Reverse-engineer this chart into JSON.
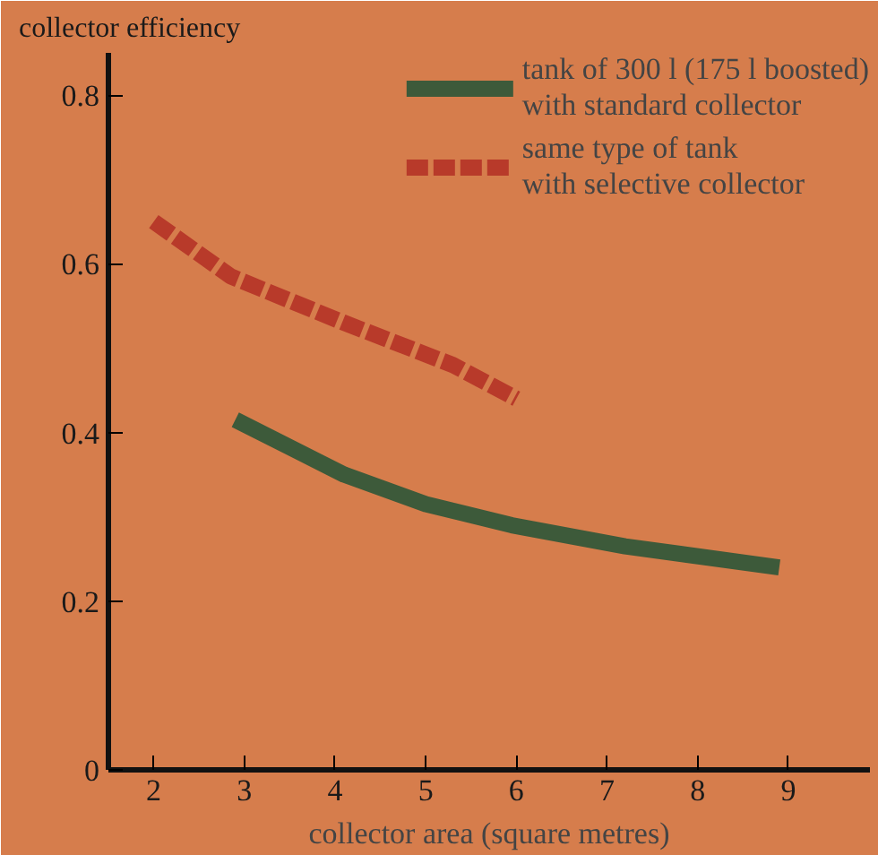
{
  "chart_data": {
    "type": "line",
    "title": "collector efficiency",
    "xlabel": "collector area (square metres)",
    "xlim": [
      1.5,
      9.9
    ],
    "xticks": [
      2,
      3,
      4,
      5,
      6,
      7,
      8,
      9
    ],
    "ylim": [
      0,
      0.85
    ],
    "yticks": [
      0,
      0.2,
      0.4,
      0.6,
      0.8
    ],
    "grid": false,
    "legend": "top right",
    "series": [
      {
        "name": "tank of 300 l (175 l boosted)\nwith standard collector",
        "color": "#3d5a3a",
        "line_style": "solid",
        "x": [
          2.9,
          4.1,
          5.0,
          5.95,
          7.2,
          8.9
        ],
        "values": [
          0.415,
          0.35,
          0.315,
          0.29,
          0.265,
          0.24
        ]
      },
      {
        "name": "same type of tank\nwith selective collector",
        "color": "#b83a2a",
        "line_style": "dashed",
        "x": [
          2.0,
          2.85,
          4.1,
          5.3,
          6.0
        ],
        "values": [
          0.65,
          0.585,
          0.53,
          0.48,
          0.44
        ]
      }
    ]
  }
}
